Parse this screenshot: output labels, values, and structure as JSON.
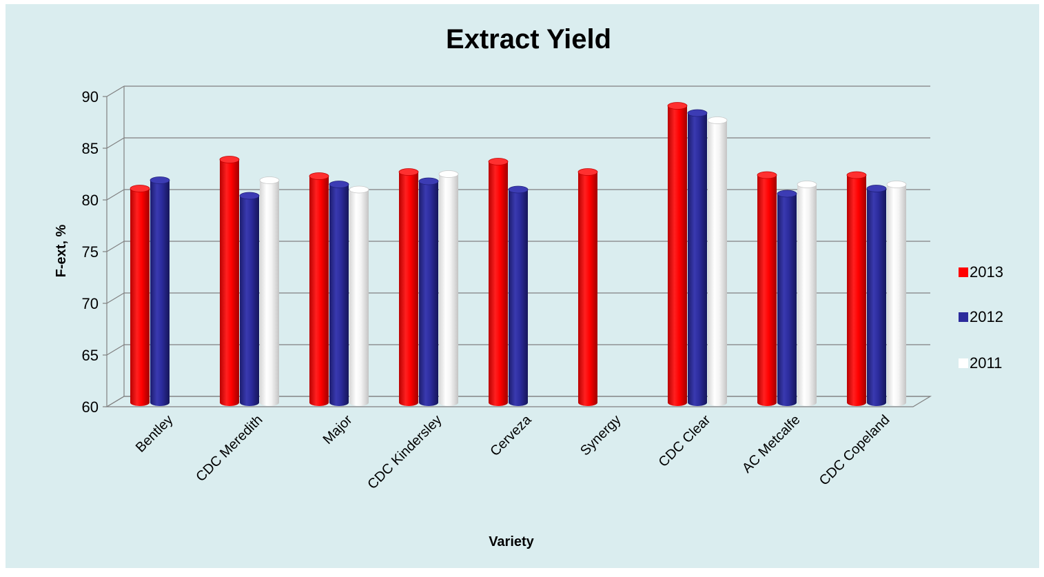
{
  "chart_data": {
    "type": "bar",
    "title": "Extract Yield",
    "xlabel": "Variety",
    "ylabel": "F-ext, %",
    "ylim": [
      60,
      90
    ],
    "yticks": [
      60,
      65,
      70,
      75,
      80,
      85,
      90
    ],
    "grid": true,
    "legend_position": "right",
    "categories": [
      "Bentley",
      "CDC Meredith",
      "Major",
      "CDC Kindersley",
      "Cerveza",
      "Synergy",
      "CDC Clear",
      "AC Metcalfe",
      "CDC Copeland"
    ],
    "series": [
      {
        "name": "2013",
        "color": "#ff0000",
        "values": [
          80.7,
          83.5,
          81.9,
          82.3,
          83.3,
          82.3,
          88.7,
          82.0,
          82.0
        ]
      },
      {
        "name": "2012",
        "color": "#2b2b9c",
        "values": [
          81.5,
          80.0,
          81.1,
          81.4,
          80.6,
          null,
          88.0,
          80.2,
          80.7
        ]
      },
      {
        "name": "2011",
        "color": "#ffffff",
        "values": [
          null,
          81.5,
          80.6,
          82.1,
          null,
          null,
          87.3,
          81.1,
          81.1
        ]
      }
    ],
    "background_color": "#daedef"
  }
}
